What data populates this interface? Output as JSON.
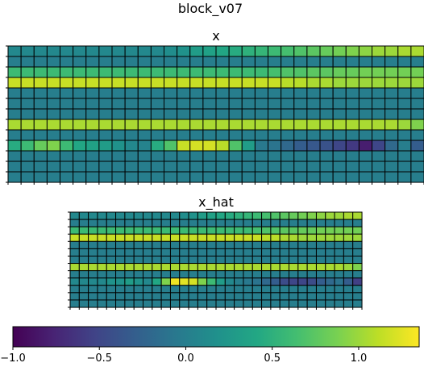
{
  "figure": {
    "suptitle": "block_v07"
  },
  "chart_data": [
    {
      "type": "heatmap",
      "title": "x",
      "rows": 13,
      "cols": 32,
      "vmin": -1.0,
      "vmax": 1.35,
      "colormap": "viridis",
      "grid": true,
      "values": [
        [
          0.1,
          0.1,
          0.1,
          0.1,
          0.1,
          0.1,
          0.1,
          0.1,
          0.1,
          0.1,
          0.1,
          0.1,
          0.15,
          0.2,
          0.3,
          0.35,
          0.4,
          0.45,
          0.5,
          0.55,
          0.6,
          0.65,
          0.7,
          0.75,
          0.8,
          0.85,
          0.9,
          0.95,
          1.0,
          1.0,
          1.05,
          1.05
        ],
        [
          0.0,
          0.0,
          0.0,
          0.0,
          0.0,
          0.0,
          0.0,
          0.0,
          0.0,
          0.0,
          0.0,
          0.0,
          0.0,
          0.0,
          0.0,
          0.0,
          0.0,
          0.0,
          0.0,
          0.0,
          0.0,
          0.0,
          0.0,
          0.0,
          0.0,
          0.0,
          0.0,
          0.0,
          0.0,
          0.0,
          0.0,
          0.0
        ],
        [
          0.6,
          0.6,
          0.6,
          0.6,
          0.6,
          0.6,
          0.6,
          0.6,
          0.6,
          0.6,
          0.6,
          0.6,
          0.6,
          0.6,
          0.6,
          0.6,
          0.6,
          0.6,
          0.6,
          0.6,
          0.65,
          0.7,
          0.7,
          0.75,
          0.75,
          0.8,
          0.8,
          0.85,
          0.85,
          0.85,
          0.85,
          0.85
        ],
        [
          1.15,
          1.15,
          1.15,
          1.15,
          1.15,
          1.15,
          1.15,
          1.15,
          1.15,
          1.15,
          1.15,
          1.15,
          1.15,
          1.15,
          1.15,
          1.15,
          1.15,
          1.15,
          1.15,
          1.15,
          1.15,
          1.1,
          1.1,
          1.05,
          1.05,
          1.0,
          1.0,
          1.0,
          1.0,
          1.0,
          1.0,
          1.0
        ],
        [
          0.0,
          0.0,
          0.0,
          0.0,
          0.0,
          0.0,
          0.0,
          0.0,
          0.0,
          0.0,
          0.0,
          0.0,
          0.0,
          0.0,
          0.0,
          0.0,
          0.0,
          0.0,
          0.0,
          0.0,
          0.0,
          0.0,
          0.0,
          0.0,
          0.0,
          0.0,
          0.0,
          0.0,
          0.0,
          0.0,
          0.0,
          0.0
        ],
        [
          0.0,
          0.0,
          0.0,
          0.0,
          0.0,
          0.0,
          0.0,
          0.0,
          0.0,
          0.0,
          0.0,
          0.0,
          0.0,
          0.0,
          0.0,
          0.0,
          0.0,
          0.0,
          0.0,
          0.0,
          0.0,
          0.0,
          0.0,
          0.0,
          0.0,
          0.0,
          0.0,
          0.0,
          0.0,
          0.0,
          0.0,
          0.0
        ],
        [
          0.0,
          0.0,
          0.0,
          0.0,
          0.0,
          0.0,
          0.0,
          0.0,
          0.0,
          0.0,
          0.0,
          0.0,
          0.0,
          0.0,
          0.0,
          0.0,
          0.0,
          0.0,
          0.0,
          0.0,
          0.0,
          0.0,
          0.0,
          0.0,
          0.0,
          0.0,
          0.0,
          0.0,
          0.0,
          0.0,
          0.0,
          0.0
        ],
        [
          1.05,
          1.05,
          1.05,
          1.05,
          1.05,
          1.05,
          1.05,
          1.05,
          1.05,
          1.05,
          1.05,
          1.05,
          1.05,
          1.05,
          1.05,
          1.05,
          1.05,
          1.05,
          1.05,
          1.05,
          1.05,
          1.05,
          1.05,
          1.05,
          1.05,
          1.05,
          1.05,
          1.05,
          1.05,
          1.05,
          1.0,
          0.9
        ],
        [
          0.0,
          0.0,
          0.0,
          0.0,
          0.0,
          0.0,
          0.0,
          0.0,
          0.0,
          0.0,
          0.0,
          0.0,
          0.0,
          0.0,
          0.0,
          0.0,
          0.0,
          0.0,
          0.0,
          0.0,
          0.0,
          0.0,
          0.0,
          0.0,
          0.0,
          0.0,
          0.0,
          0.0,
          0.0,
          0.0,
          0.0,
          0.0
        ],
        [
          0.45,
          0.6,
          0.8,
          0.9,
          0.6,
          0.4,
          0.35,
          0.3,
          0.2,
          0.1,
          0.05,
          0.45,
          0.7,
          1.15,
          1.2,
          1.2,
          1.1,
          0.7,
          0.3,
          -0.05,
          -0.1,
          -0.2,
          -0.3,
          -0.35,
          -0.4,
          -0.5,
          -0.6,
          -0.8,
          -0.5,
          -0.2,
          0.0,
          -0.3
        ],
        [
          0.0,
          0.0,
          0.0,
          0.0,
          0.0,
          0.0,
          0.0,
          0.0,
          0.0,
          0.0,
          0.0,
          0.0,
          0.0,
          0.0,
          0.0,
          0.0,
          0.0,
          0.0,
          0.0,
          0.0,
          0.0,
          0.0,
          0.0,
          0.0,
          0.0,
          0.0,
          0.0,
          0.0,
          0.0,
          0.0,
          0.0,
          0.0
        ],
        [
          0.0,
          0.0,
          0.0,
          0.0,
          0.0,
          0.0,
          0.0,
          0.0,
          0.0,
          0.0,
          0.0,
          0.0,
          0.0,
          0.0,
          0.0,
          0.0,
          0.0,
          0.0,
          0.0,
          0.0,
          0.0,
          0.0,
          0.0,
          0.0,
          0.0,
          0.0,
          0.0,
          0.0,
          0.0,
          0.0,
          0.0,
          0.0
        ],
        [
          0.0,
          0.0,
          0.0,
          0.0,
          0.0,
          0.0,
          0.0,
          0.0,
          0.0,
          0.0,
          0.0,
          0.0,
          0.0,
          0.0,
          0.0,
          0.0,
          0.0,
          0.0,
          0.0,
          0.0,
          0.0,
          0.0,
          0.0,
          0.0,
          0.0,
          0.0,
          0.0,
          0.0,
          0.0,
          0.0,
          0.0,
          0.0
        ]
      ]
    },
    {
      "type": "heatmap",
      "title": "x_hat",
      "rows": 13,
      "cols": 32,
      "vmin": -1.0,
      "vmax": 1.35,
      "colormap": "viridis",
      "grid": true,
      "values": [
        [
          0.1,
          0.1,
          0.1,
          0.1,
          0.1,
          0.1,
          0.1,
          0.1,
          0.1,
          0.1,
          0.1,
          0.1,
          0.15,
          0.2,
          0.3,
          0.35,
          0.4,
          0.45,
          0.5,
          0.55,
          0.6,
          0.65,
          0.7,
          0.75,
          0.8,
          0.85,
          0.9,
          0.95,
          1.0,
          1.0,
          1.05,
          1.05
        ],
        [
          0.0,
          0.0,
          0.0,
          0.0,
          0.0,
          0.0,
          0.0,
          0.0,
          0.0,
          0.0,
          0.0,
          0.0,
          0.0,
          0.0,
          0.0,
          0.0,
          0.0,
          0.0,
          0.0,
          0.0,
          0.0,
          0.0,
          0.0,
          0.0,
          0.0,
          0.0,
          0.0,
          0.0,
          0.0,
          0.0,
          0.0,
          0.0
        ],
        [
          0.6,
          0.6,
          0.6,
          0.6,
          0.6,
          0.6,
          0.6,
          0.6,
          0.6,
          0.6,
          0.6,
          0.6,
          0.6,
          0.6,
          0.6,
          0.6,
          0.6,
          0.6,
          0.6,
          0.6,
          0.65,
          0.7,
          0.7,
          0.75,
          0.75,
          0.8,
          0.8,
          0.85,
          0.85,
          0.85,
          0.85,
          0.85
        ],
        [
          1.15,
          1.15,
          1.15,
          1.15,
          1.15,
          1.15,
          1.15,
          1.15,
          1.15,
          1.15,
          1.15,
          1.15,
          1.15,
          1.15,
          1.15,
          1.15,
          1.15,
          1.15,
          1.15,
          1.15,
          1.15,
          1.1,
          1.1,
          1.05,
          1.05,
          1.0,
          1.0,
          1.0,
          1.0,
          1.0,
          1.0,
          1.0
        ],
        [
          0.0,
          0.0,
          0.0,
          0.0,
          0.0,
          0.0,
          0.0,
          0.0,
          0.0,
          0.0,
          0.0,
          0.0,
          0.0,
          0.0,
          0.0,
          0.0,
          0.0,
          0.0,
          0.0,
          0.0,
          0.0,
          0.0,
          0.0,
          0.0,
          0.0,
          0.0,
          0.0,
          0.0,
          0.0,
          0.0,
          0.0,
          0.0
        ],
        [
          0.0,
          0.0,
          0.0,
          0.0,
          0.0,
          0.0,
          0.0,
          0.0,
          0.0,
          0.0,
          0.0,
          0.0,
          0.0,
          0.0,
          0.0,
          0.0,
          0.0,
          0.0,
          0.0,
          0.0,
          0.0,
          0.0,
          0.0,
          0.0,
          0.0,
          0.0,
          0.0,
          0.0,
          0.0,
          0.0,
          0.0,
          0.0
        ],
        [
          0.0,
          0.0,
          0.0,
          0.0,
          0.0,
          0.0,
          0.0,
          0.0,
          0.0,
          0.0,
          0.0,
          0.0,
          0.0,
          0.0,
          0.0,
          0.0,
          0.0,
          0.0,
          0.0,
          0.0,
          0.0,
          0.0,
          0.0,
          0.0,
          0.0,
          0.0,
          0.0,
          0.0,
          0.0,
          0.0,
          0.0,
          0.0
        ],
        [
          1.05,
          1.05,
          1.05,
          1.05,
          1.05,
          1.05,
          1.05,
          1.05,
          1.05,
          1.05,
          1.05,
          1.05,
          1.05,
          1.05,
          1.05,
          1.05,
          1.05,
          1.05,
          1.05,
          1.05,
          1.05,
          1.05,
          1.05,
          1.05,
          1.05,
          1.05,
          1.05,
          1.05,
          1.05,
          1.05,
          1.0,
          0.9
        ],
        [
          0.0,
          0.0,
          0.0,
          0.0,
          0.0,
          0.0,
          0.0,
          0.0,
          0.0,
          0.0,
          0.0,
          0.0,
          0.0,
          0.0,
          0.0,
          0.0,
          0.0,
          0.0,
          0.0,
          0.0,
          0.0,
          0.0,
          0.0,
          0.0,
          0.0,
          0.0,
          0.0,
          0.0,
          0.0,
          0.0,
          0.0,
          0.0
        ],
        [
          0.1,
          0.1,
          0.1,
          0.1,
          0.2,
          0.2,
          0.3,
          0.2,
          0.1,
          0.4,
          0.9,
          1.3,
          1.25,
          1.2,
          0.9,
          0.6,
          0.3,
          0.1,
          0.0,
          -0.05,
          -0.1,
          -0.2,
          -0.3,
          -0.45,
          -0.5,
          -0.5,
          -0.45,
          -0.3,
          -0.2,
          -0.1,
          -0.3,
          -0.55
        ],
        [
          0.0,
          0.0,
          0.0,
          0.0,
          0.0,
          0.0,
          0.0,
          0.0,
          0.0,
          0.0,
          0.0,
          0.0,
          0.0,
          0.0,
          0.0,
          0.0,
          0.0,
          0.0,
          0.0,
          0.0,
          0.0,
          0.0,
          0.0,
          0.0,
          0.0,
          0.0,
          0.0,
          0.0,
          0.0,
          0.0,
          0.0,
          0.0
        ],
        [
          0.0,
          0.0,
          0.0,
          0.0,
          0.0,
          0.0,
          0.0,
          0.0,
          0.0,
          0.0,
          0.0,
          0.0,
          0.0,
          0.0,
          0.0,
          0.0,
          0.0,
          0.0,
          0.0,
          0.0,
          0.0,
          0.0,
          0.0,
          0.0,
          0.0,
          0.0,
          0.0,
          0.0,
          0.0,
          0.0,
          0.0,
          0.0
        ],
        [
          0.0,
          0.0,
          0.0,
          0.0,
          0.0,
          0.0,
          0.0,
          0.0,
          0.0,
          0.0,
          0.0,
          0.0,
          0.0,
          0.0,
          0.0,
          0.0,
          0.0,
          0.0,
          0.0,
          0.0,
          0.0,
          0.0,
          0.0,
          0.0,
          0.0,
          0.0,
          0.0,
          0.0,
          0.0,
          0.0,
          0.0,
          0.0
        ]
      ]
    }
  ],
  "colorbar": {
    "colormap": "viridis",
    "vmin": -1.0,
    "vmax": 1.35,
    "orientation": "horizontal",
    "ticks": [
      -1.0,
      -0.5,
      0.0,
      0.5,
      1.0
    ],
    "tick_labels": [
      "−1.0",
      "−0.5",
      "0.0",
      "0.5",
      "1.0"
    ]
  }
}
